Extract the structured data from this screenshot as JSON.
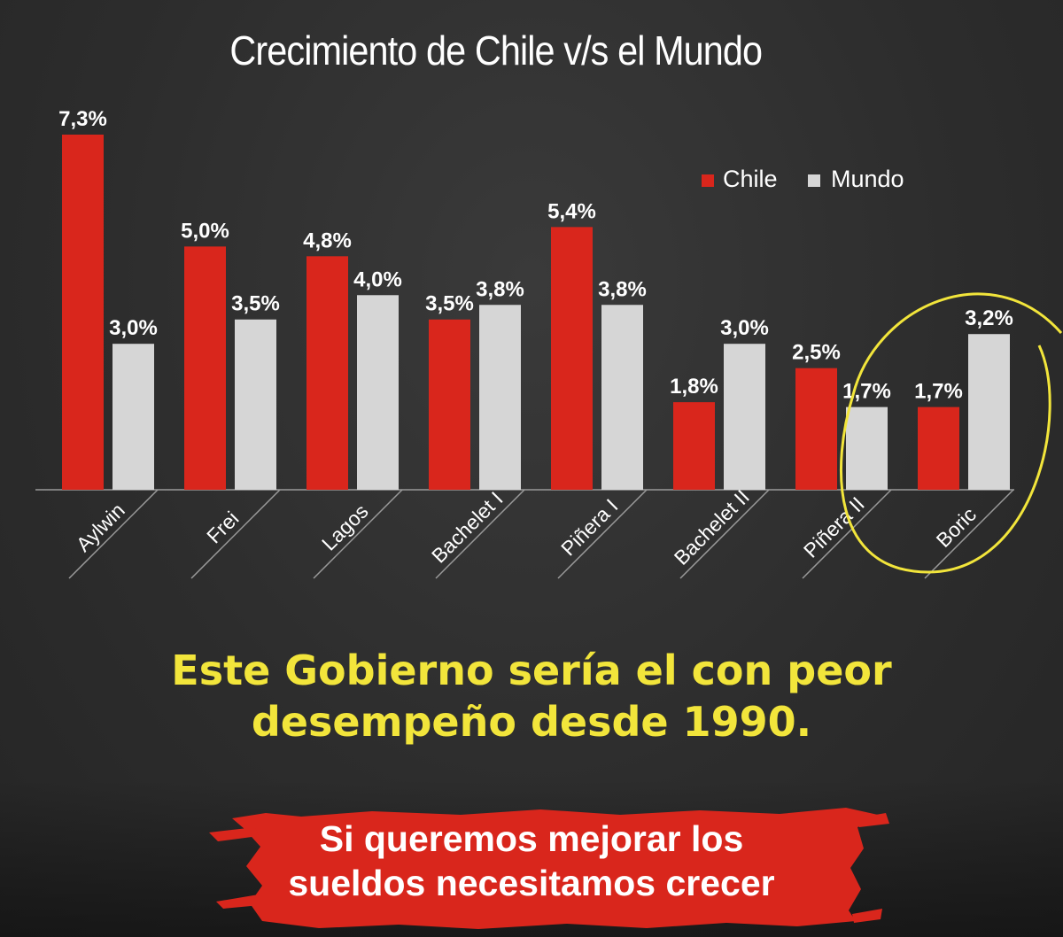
{
  "chart_data": {
    "type": "bar",
    "title": "Crecimiento de Chile v/s el Mundo",
    "categories": [
      "Aylwin",
      "Frei",
      "Lagos",
      "Bachelet I",
      "Piñera I",
      "Bachelet II",
      "Piñera II",
      "Boric"
    ],
    "series": [
      {
        "name": "Chile",
        "color": "#d9261c",
        "values": [
          7.3,
          5.0,
          4.8,
          3.5,
          5.4,
          1.8,
          2.5,
          1.7
        ],
        "labels": [
          "7,3%",
          "5,0%",
          "4,8%",
          "3,5%",
          "5,4%",
          "1,8%",
          "2,5%",
          "1,7%"
        ]
      },
      {
        "name": "Mundo",
        "color": "#d6d6d6",
        "values": [
          3.0,
          3.5,
          4.0,
          3.8,
          3.8,
          3.0,
          1.7,
          3.2
        ],
        "labels": [
          "3,0%",
          "3,5%",
          "4,0%",
          "3,8%",
          "3,8%",
          "3,0%",
          "1,7%",
          "3,2%"
        ]
      }
    ],
    "legend_position": "top-right",
    "grid": false,
    "ylim": [
      0,
      7.3
    ],
    "highlighted_category": "Boric",
    "highlight_color": "#f2e53b"
  },
  "headline": {
    "line1": "Este Gobierno sería el con peor",
    "line2": "desempeño desde 1990."
  },
  "banner": {
    "line1": "Si queremos mejorar los",
    "line2": "sueldos necesitamos crecer",
    "color": "#d9261c"
  }
}
